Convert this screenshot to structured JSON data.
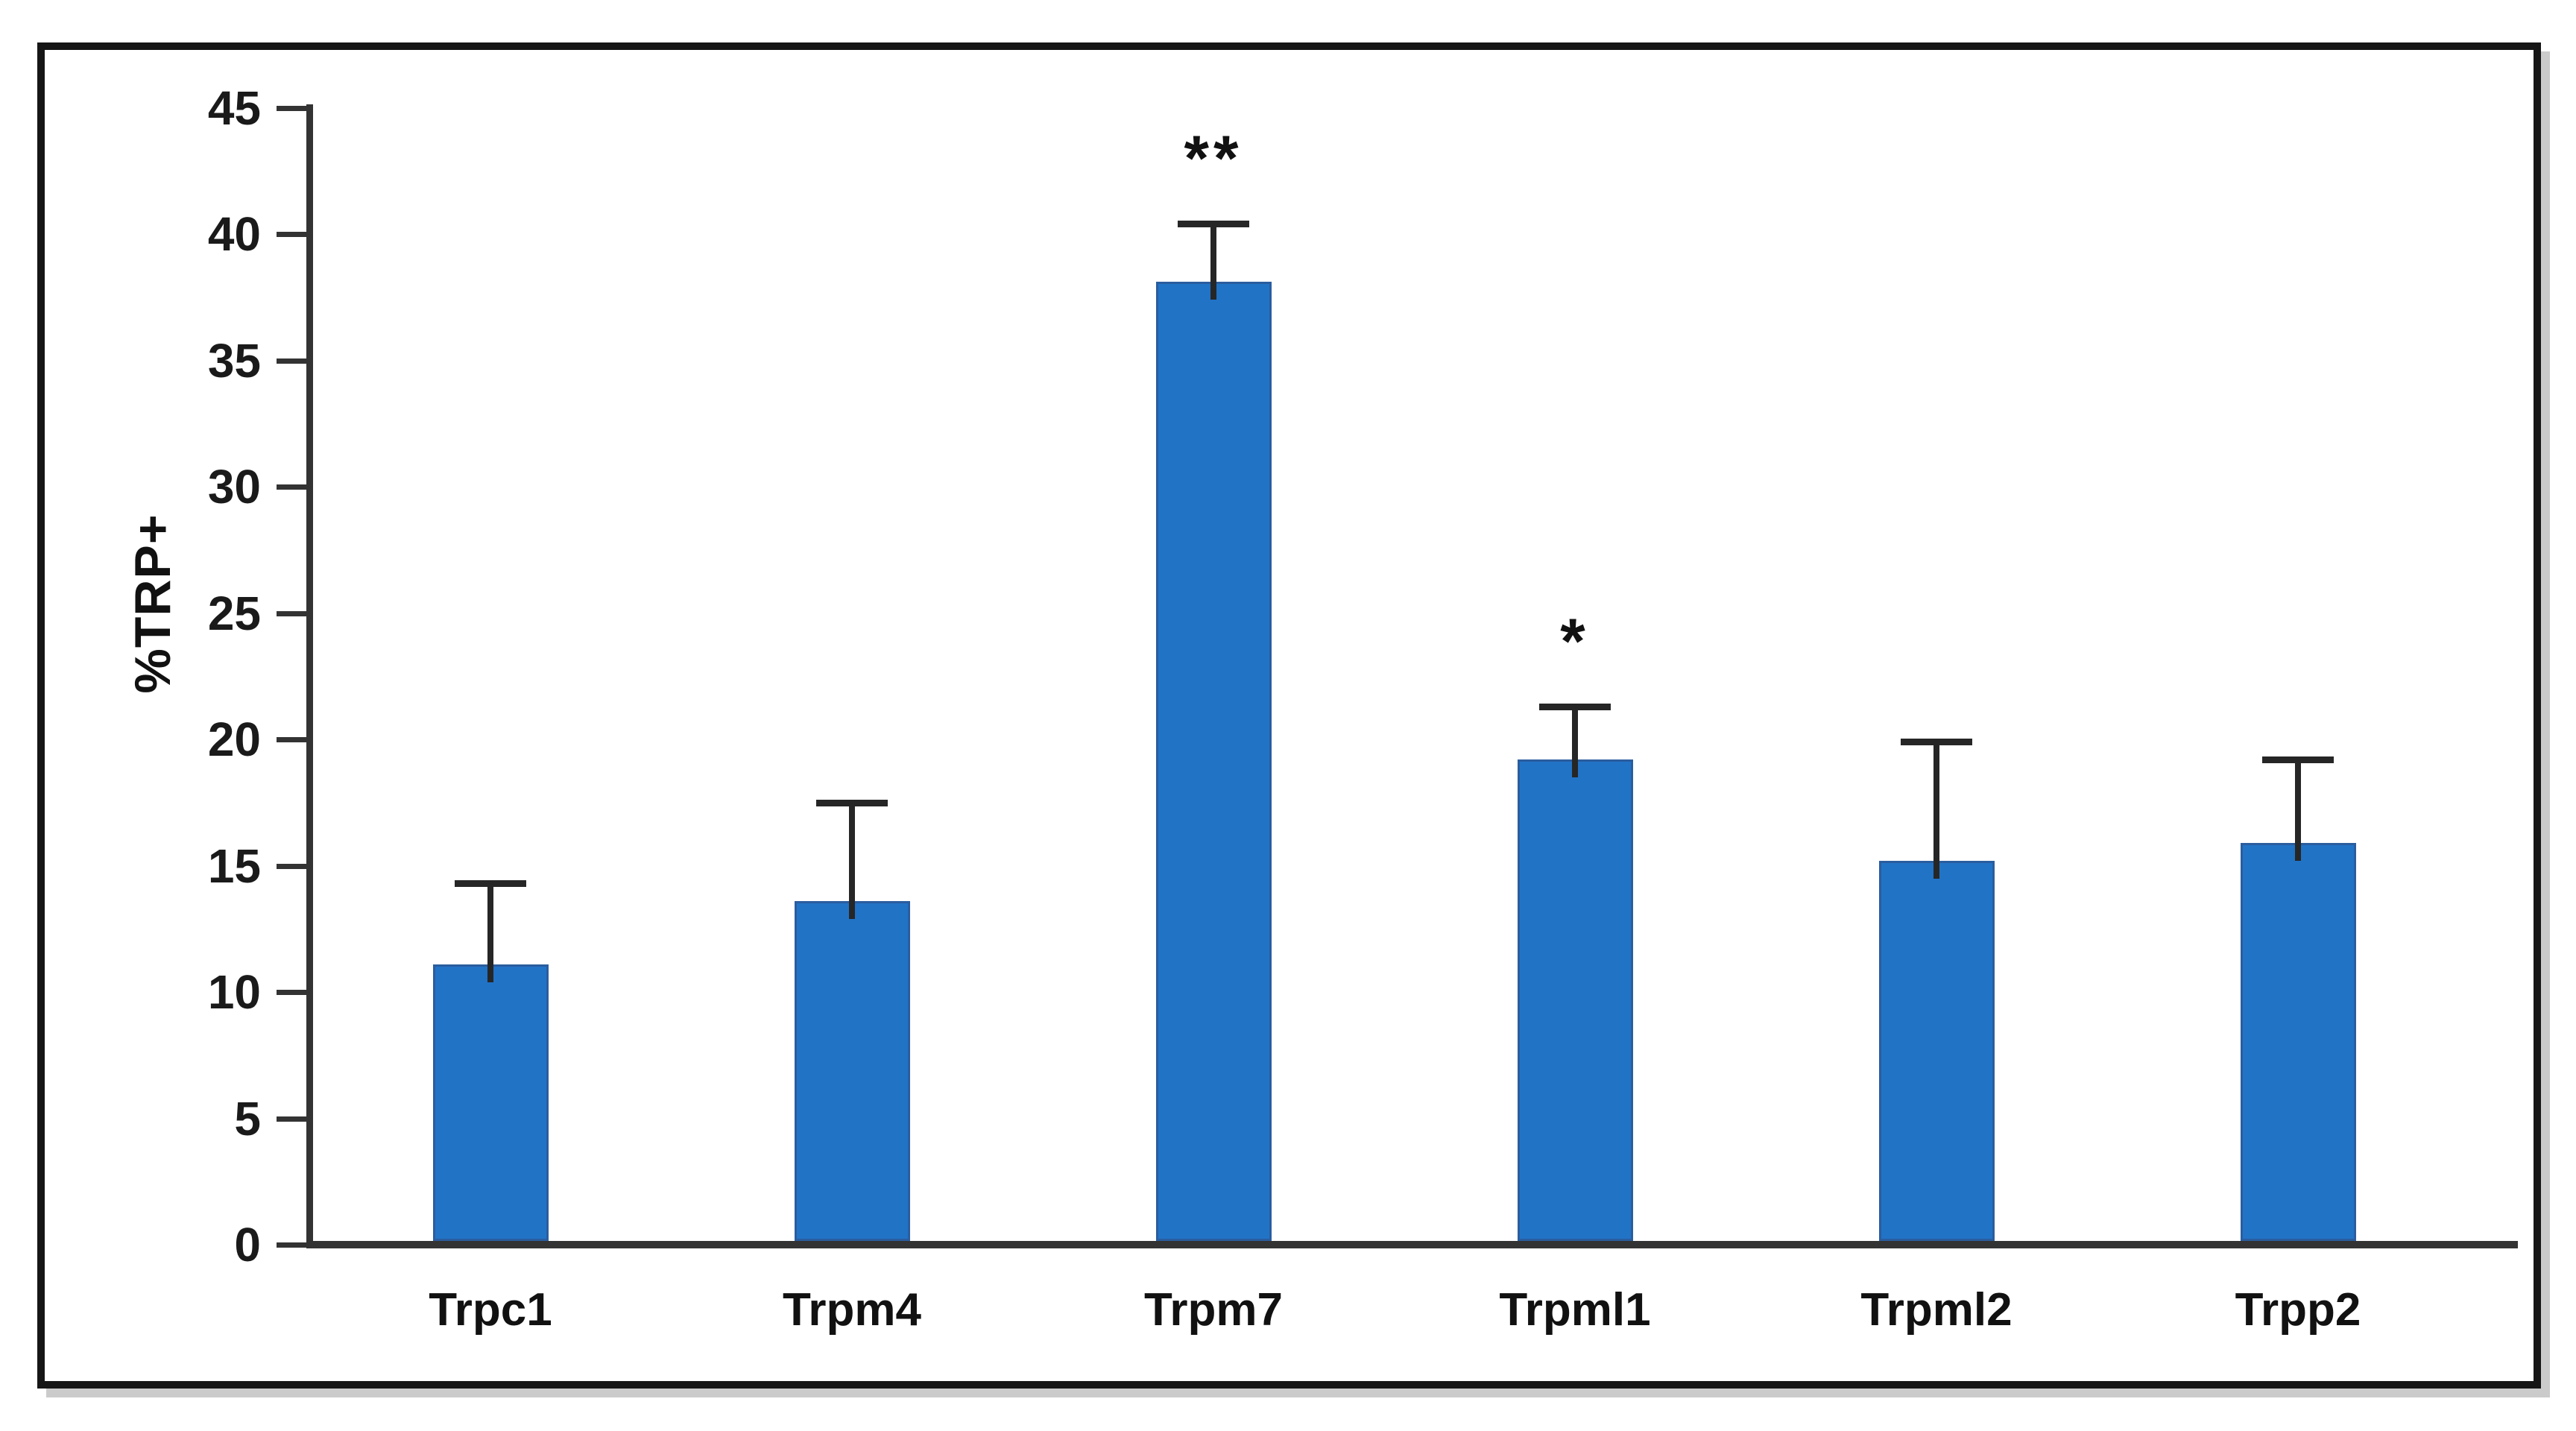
{
  "figure": {
    "background": "#ffffff",
    "frame_border_color": "#161616",
    "frame_shadow_color": "#cbcbcb"
  },
  "chart_data": {
    "type": "bar",
    "title": "",
    "xlabel": "",
    "ylabel": "%TRP+",
    "categories": [
      "Trpc1",
      "Trpm4",
      "Trpm7",
      "Trpml1",
      "Trpml2",
      "Trpp2"
    ],
    "values": [
      11.1,
      13.6,
      38.1,
      19.2,
      15.2,
      15.9
    ],
    "errors_plus": [
      3.2,
      3.9,
      2.3,
      2.1,
      4.7,
      3.3
    ],
    "significance": [
      "",
      "",
      "**",
      "*",
      "",
      ""
    ],
    "ylim": [
      0,
      45
    ],
    "yticks": [
      0,
      5,
      10,
      15,
      20,
      25,
      30,
      35,
      40,
      45
    ],
    "grid": false,
    "legend": false,
    "bar_color": "#2173C6",
    "bar_edge_color": "#2A5D9F",
    "error_bar_color": "#262626",
    "axis_color": "#333333",
    "tick_label_color": "#1a1a1a"
  }
}
